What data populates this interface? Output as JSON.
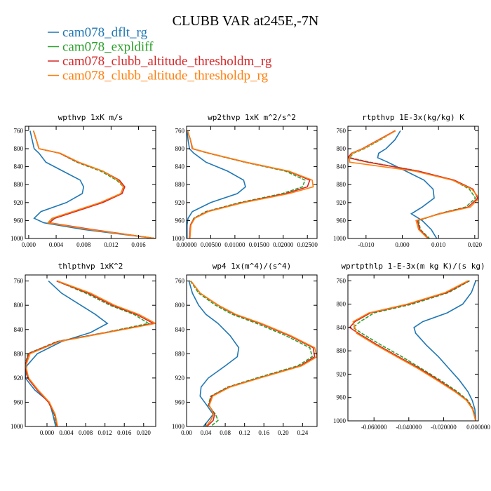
{
  "title": "CLUBB VAR at245E,-7N",
  "legend": [
    {
      "label": "cam078_dflt_rg",
      "color": "#1f77b4"
    },
    {
      "label": "cam078_expldiff",
      "color": "#2ca02c"
    },
    {
      "label": "cam078_clubb_altitude_thresholdm_rg",
      "color": "#d62728"
    },
    {
      "label": "cam078_clubb_altitude_thresholdp_rg",
      "color": "#ff7f0e"
    }
  ],
  "chart_data": [
    {
      "type": "line",
      "title": "wpthvp  1xK m/s",
      "xlim": [
        -0.0005,
        0.0185
      ],
      "ylim": [
        1000,
        750
      ],
      "xticks": [
        "0.000",
        "0.004",
        "0.008",
        "0.012",
        "0.016"
      ],
      "xtick_values": [
        0,
        0.004,
        0.008,
        0.012,
        0.016
      ],
      "yticks": [
        "760",
        "800",
        "840",
        "880",
        "920",
        "960",
        "1000"
      ],
      "ytick_values": [
        760,
        800,
        840,
        880,
        920,
        960,
        1000
      ],
      "y": [
        760,
        780,
        800,
        810,
        830,
        850,
        870,
        885,
        900,
        920,
        940,
        955,
        965,
        980,
        1000
      ],
      "series": [
        {
          "values": [
            0.0002,
            0.0005,
            0.0008,
            0.0015,
            0.0025,
            0.005,
            0.0075,
            0.008,
            0.0078,
            0.0055,
            0.0018,
            0.0008,
            0.0022,
            0.008,
            0.0185
          ]
        },
        {
          "values": [
            0.0007,
            0.0011,
            0.0015,
            0.0045,
            0.007,
            0.0105,
            0.0128,
            0.0138,
            0.0134,
            0.0105,
            0.0065,
            0.0035,
            0.0028,
            0.009,
            0.0185
          ]
        },
        {
          "values": [
            0.0007,
            0.0011,
            0.0015,
            0.0045,
            0.0072,
            0.0108,
            0.0132,
            0.014,
            0.0136,
            0.0108,
            0.0068,
            0.0038,
            0.003,
            0.0092,
            0.0185
          ]
        },
        {
          "values": [
            0.0007,
            0.0011,
            0.0015,
            0.0046,
            0.0073,
            0.0108,
            0.013,
            0.0138,
            0.0134,
            0.0104,
            0.0064,
            0.0034,
            0.0028,
            0.0088,
            0.0185
          ]
        }
      ]
    },
    {
      "type": "line",
      "title": "wp2thvp  1xK m^2/s^2",
      "xlim": [
        0,
        0.027
      ],
      "ylim": [
        1000,
        750
      ],
      "xticks": [
        "0.00000",
        "0.00500",
        "0.01000",
        "0.01500",
        "0.02000",
        "0.02500"
      ],
      "xtick_values": [
        0,
        0.005,
        0.01,
        0.015,
        0.02,
        0.025
      ],
      "yticks": [
        "760",
        "800",
        "840",
        "880",
        "920",
        "960",
        "1000"
      ],
      "ytick_values": [
        760,
        800,
        840,
        880,
        920,
        960,
        1000
      ],
      "y": [
        760,
        780,
        800,
        810,
        830,
        850,
        870,
        885,
        900,
        920,
        940,
        955,
        970,
        1000
      ],
      "series": [
        {
          "values": [
            0.0001,
            0.0003,
            0.0006,
            0.0015,
            0.004,
            0.0085,
            0.0118,
            0.0122,
            0.0105,
            0.005,
            0.0012,
            0.0003,
            0.0001,
            0.0001
          ]
        },
        {
          "values": [
            0.0002,
            0.0008,
            0.0012,
            0.0045,
            0.012,
            0.0205,
            0.0245,
            0.024,
            0.0198,
            0.011,
            0.004,
            0.0015,
            0.0008,
            0.0006
          ]
        },
        {
          "values": [
            0.0002,
            0.0008,
            0.0012,
            0.0046,
            0.0122,
            0.021,
            0.0255,
            0.025,
            0.0205,
            0.0115,
            0.0043,
            0.0016,
            0.0008,
            0.0006
          ]
        },
        {
          "values": [
            0.0002,
            0.0008,
            0.0013,
            0.0047,
            0.0123,
            0.0212,
            0.026,
            0.0262,
            0.0212,
            0.0118,
            0.0045,
            0.0017,
            0.0009,
            0.0007
          ]
        }
      ]
    },
    {
      "type": "line",
      "title": "rtpthvp  1E-3x(kg/kg) K",
      "xlim": [
        -0.015,
        0.021
      ],
      "ylim": [
        1000,
        750
      ],
      "xticks": [
        "-0.010",
        "0.000",
        "0.010",
        "0.020"
      ],
      "xtick_values": [
        -0.01,
        0,
        0.01,
        0.02
      ],
      "yticks": [
        "760",
        "800",
        "840",
        "880",
        "920",
        "960",
        "1000"
      ],
      "ytick_values": [
        760,
        800,
        840,
        880,
        920,
        960,
        1000
      ],
      "y": [
        760,
        780,
        800,
        810,
        820,
        830,
        850,
        870,
        890,
        910,
        930,
        945,
        960,
        980,
        1000
      ],
      "series": [
        {
          "values": [
            -0.0005,
            -0.002,
            -0.0045,
            -0.0065,
            -0.0068,
            -0.004,
            0.001,
            0.006,
            0.0085,
            0.0088,
            0.0055,
            0.0025,
            0.0055,
            0.008,
            0.0095
          ]
        },
        {
          "values": [
            -0.002,
            -0.006,
            -0.0105,
            -0.0135,
            -0.0145,
            -0.009,
            0.0045,
            0.014,
            0.0185,
            0.0202,
            0.0175,
            0.01,
            0.0045,
            0.005,
            0.0075
          ]
        },
        {
          "values": [
            -0.002,
            -0.0065,
            -0.011,
            -0.014,
            -0.015,
            -0.0095,
            0.0045,
            0.0143,
            0.0195,
            0.0208,
            0.0182,
            0.0102,
            0.0042,
            0.0048,
            0.0072
          ]
        },
        {
          "values": [
            -0.0018,
            -0.0063,
            -0.0108,
            -0.0138,
            -0.0146,
            -0.0145,
            0.0035,
            0.0138,
            0.0192,
            0.0212,
            0.0188,
            0.0105,
            0.0038,
            0.0045,
            0.007
          ]
        }
      ]
    },
    {
      "type": "line",
      "title": "thlpthvp  1xK^2",
      "xlim": [
        -0.0045,
        0.0225
      ],
      "ylim": [
        1000,
        750
      ],
      "xticks": [
        "0.000",
        "0.004",
        "0.008",
        "0.012",
        "0.016",
        "0.020"
      ],
      "xtick_values": [
        0,
        0.004,
        0.008,
        0.012,
        0.016,
        0.02
      ],
      "yticks": [
        "760",
        "800",
        "840",
        "880",
        "920",
        "960",
        "1000"
      ],
      "ytick_values": [
        760,
        800,
        840,
        880,
        920,
        960,
        1000
      ],
      "y": [
        760,
        780,
        800,
        815,
        830,
        845,
        860,
        880,
        900,
        920,
        940,
        960,
        980,
        1000
      ],
      "series": [
        {
          "values": [
            0.0003,
            0.003,
            0.007,
            0.01,
            0.0125,
            0.009,
            0.003,
            -0.002,
            -0.0042,
            -0.0045,
            -0.0025,
            0.0005,
            0.0012,
            0.0018
          ]
        },
        {
          "values": [
            0.002,
            0.008,
            0.013,
            0.018,
            0.021,
            0.012,
            0.002,
            -0.004,
            -0.0045,
            -0.004,
            -0.002,
            0.0003,
            0.0015,
            0.002
          ]
        },
        {
          "values": [
            0.002,
            0.0085,
            0.0135,
            0.0185,
            0.022,
            0.0122,
            0.0022,
            -0.0038,
            -0.0045,
            -0.004,
            -0.002,
            0.0003,
            0.0016,
            0.0021
          ]
        },
        {
          "values": [
            0.0022,
            0.009,
            0.014,
            0.019,
            0.0225,
            0.0125,
            0.0025,
            -0.0035,
            -0.0044,
            -0.0038,
            -0.0018,
            0.0005,
            0.0017,
            0.0022
          ]
        }
      ]
    },
    {
      "type": "line",
      "title": "wp4  1x(m^4)/(s^4)",
      "xlim": [
        0,
        0.27
      ],
      "ylim": [
        1000,
        750
      ],
      "xticks": [
        "0.00",
        "0.04",
        "0.08",
        "0.12",
        "0.16",
        "0.20",
        "0.24"
      ],
      "xtick_values": [
        0,
        0.04,
        0.08,
        0.12,
        0.16,
        0.2,
        0.24
      ],
      "yticks": [
        "760",
        "800",
        "840",
        "880",
        "920",
        "960",
        "1000"
      ],
      "ytick_values": [
        760,
        800,
        840,
        880,
        920,
        960,
        1000
      ],
      "y": [
        760,
        780,
        800,
        815,
        830,
        850,
        870,
        885,
        900,
        920,
        935,
        950,
        965,
        980,
        990,
        1000
      ],
      "series": [
        {
          "values": [
            0.005,
            0.012,
            0.025,
            0.04,
            0.065,
            0.09,
            0.108,
            0.105,
            0.08,
            0.045,
            0.03,
            0.028,
            0.042,
            0.055,
            0.045,
            0.035
          ]
        },
        {
          "values": [
            0.008,
            0.025,
            0.06,
            0.095,
            0.145,
            0.205,
            0.255,
            0.26,
            0.23,
            0.145,
            0.085,
            0.05,
            0.045,
            0.06,
            0.065,
            0.05
          ]
        },
        {
          "values": [
            0.009,
            0.028,
            0.065,
            0.1,
            0.152,
            0.212,
            0.262,
            0.265,
            0.235,
            0.15,
            0.088,
            0.052,
            0.046,
            0.058,
            0.055,
            0.042
          ]
        },
        {
          "values": [
            0.009,
            0.028,
            0.066,
            0.102,
            0.155,
            0.215,
            0.265,
            0.27,
            0.238,
            0.152,
            0.09,
            0.054,
            0.047,
            0.056,
            0.05,
            0.04
          ]
        }
      ]
    },
    {
      "type": "line",
      "title": "wprtpthlp  1-E-3x(m kg K)/(s kg)",
      "xlim": [
        -0.075,
        0.0
      ],
      "ylim": [
        1000,
        750
      ],
      "xticks": [
        "-0.060000",
        "-0.040000",
        "-0.020000",
        "0.000000"
      ],
      "xtick_values": [
        -0.06,
        -0.04,
        -0.02,
        0
      ],
      "yticks": [
        "760",
        "800",
        "840",
        "880",
        "920",
        "960",
        "1000"
      ],
      "ytick_values": [
        760,
        800,
        840,
        880,
        920,
        960,
        1000
      ],
      "y": [
        760,
        780,
        800,
        815,
        830,
        840,
        850,
        870,
        890,
        910,
        930,
        950,
        965,
        980,
        1000
      ],
      "series": [
        {
          "values": [
            -0.0015,
            -0.004,
            -0.009,
            -0.018,
            -0.032,
            -0.037,
            -0.036,
            -0.03,
            -0.023,
            -0.017,
            -0.011,
            -0.006,
            -0.0035,
            -0.002,
            -0.0015
          ]
        },
        {
          "values": [
            -0.005,
            -0.017,
            -0.038,
            -0.06,
            -0.068,
            -0.072,
            -0.067,
            -0.056,
            -0.044,
            -0.033,
            -0.022,
            -0.012,
            -0.006,
            -0.003,
            -0.0015
          ]
        },
        {
          "values": [
            -0.0055,
            -0.018,
            -0.04,
            -0.062,
            -0.071,
            -0.074,
            -0.069,
            -0.058,
            -0.046,
            -0.034,
            -0.023,
            -0.013,
            -0.0065,
            -0.0032,
            -0.0015
          ]
        },
        {
          "values": [
            -0.006,
            -0.019,
            -0.041,
            -0.063,
            -0.072,
            -0.071,
            -0.07,
            -0.059,
            -0.047,
            -0.035,
            -0.024,
            -0.0135,
            -0.0068,
            -0.0034,
            -0.0016
          ]
        }
      ]
    }
  ]
}
